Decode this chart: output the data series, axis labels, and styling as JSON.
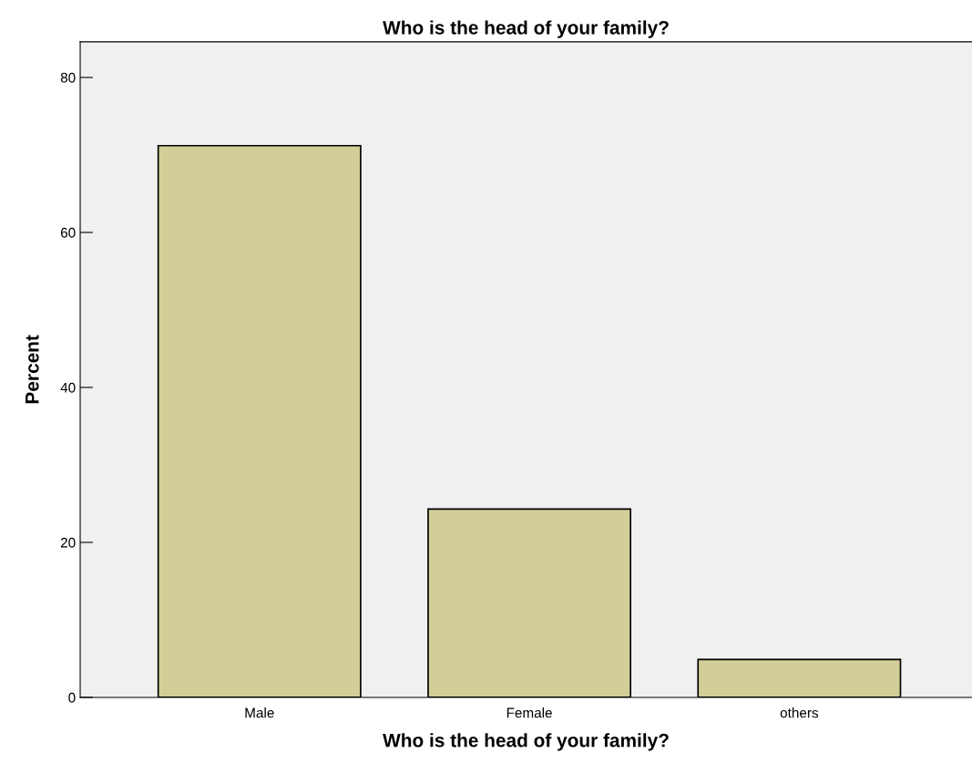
{
  "chart_data": {
    "type": "bar",
    "title": "Who is the head of your family?",
    "xlabel": "Who is the head of your family?",
    "ylabel": "Percent",
    "categories": [
      "Male",
      "Female",
      "others"
    ],
    "values": [
      71.2,
      24.3,
      4.9
    ],
    "color": "#d3ce97",
    "ylim": [
      0,
      84.6
    ],
    "yticks": [
      0,
      20,
      40,
      60,
      80
    ],
    "grid": false,
    "legend": false
  }
}
